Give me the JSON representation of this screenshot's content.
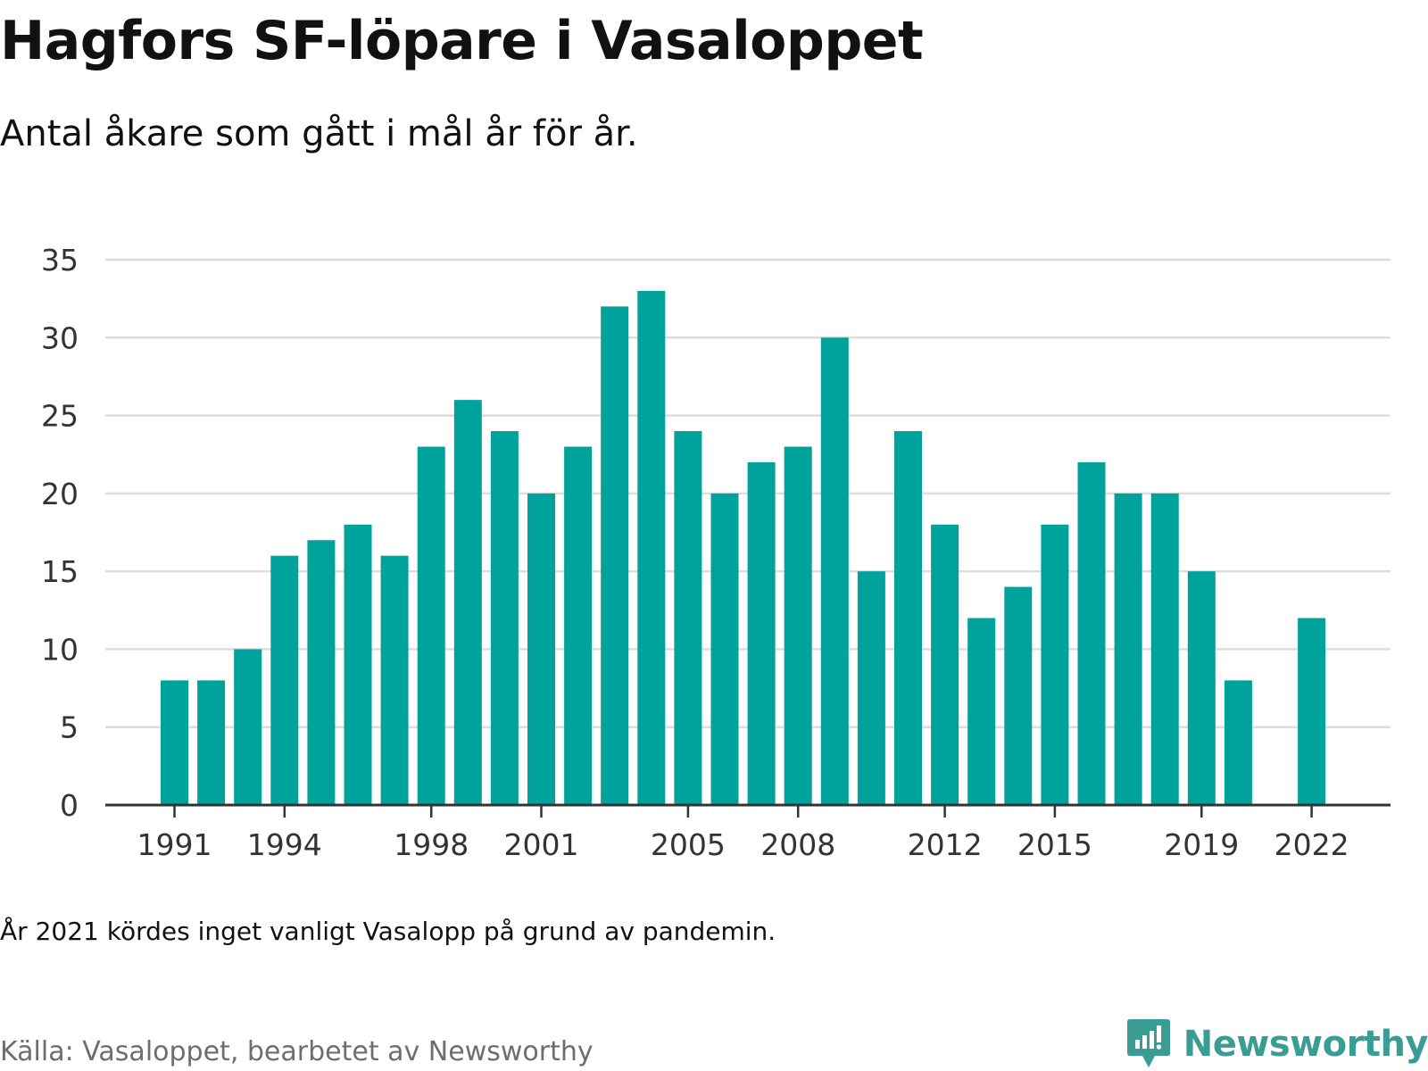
{
  "title": "Hagfors SF-löpare i Vasaloppet",
  "subtitle": "Antal åkare som gått i mål år för år.",
  "note": "År 2021 kördes inget vanligt Vasalopp på grund av pandemin.",
  "source": "Källa: Vasaloppet, bearbetet av Newsworthy",
  "brand": {
    "name": "Newsworthy",
    "icon": "newsworthy-logo-icon",
    "color": "#3a9d94"
  },
  "chart_data": {
    "type": "bar",
    "title": "Hagfors SF-löpare i Vasaloppet",
    "subtitle": "Antal åkare som gått i mål år för år.",
    "xlabel": "",
    "ylabel": "",
    "categories": [
      1991,
      1992,
      1993,
      1994,
      1995,
      1996,
      1997,
      1998,
      1999,
      2000,
      2001,
      2002,
      2003,
      2004,
      2005,
      2006,
      2007,
      2008,
      2009,
      2010,
      2011,
      2012,
      2013,
      2014,
      2015,
      2016,
      2017,
      2018,
      2019,
      2020,
      2021,
      2022
    ],
    "values": [
      8,
      8,
      10,
      16,
      17,
      18,
      16,
      23,
      26,
      24,
      20,
      23,
      32,
      33,
      24,
      20,
      22,
      23,
      30,
      15,
      24,
      18,
      12,
      14,
      18,
      22,
      20,
      20,
      15,
      8,
      null,
      12
    ],
    "ylim": [
      0,
      35
    ],
    "yticks": [
      0,
      5,
      10,
      15,
      20,
      25,
      30,
      35
    ],
    "xtick_labels": [
      1991,
      1994,
      1998,
      2001,
      2005,
      2008,
      2012,
      2015,
      2019,
      2022
    ],
    "grid": true,
    "bar_color": "#00a39b",
    "gridline_color": "#dddddd",
    "axis_color": "#333333"
  }
}
